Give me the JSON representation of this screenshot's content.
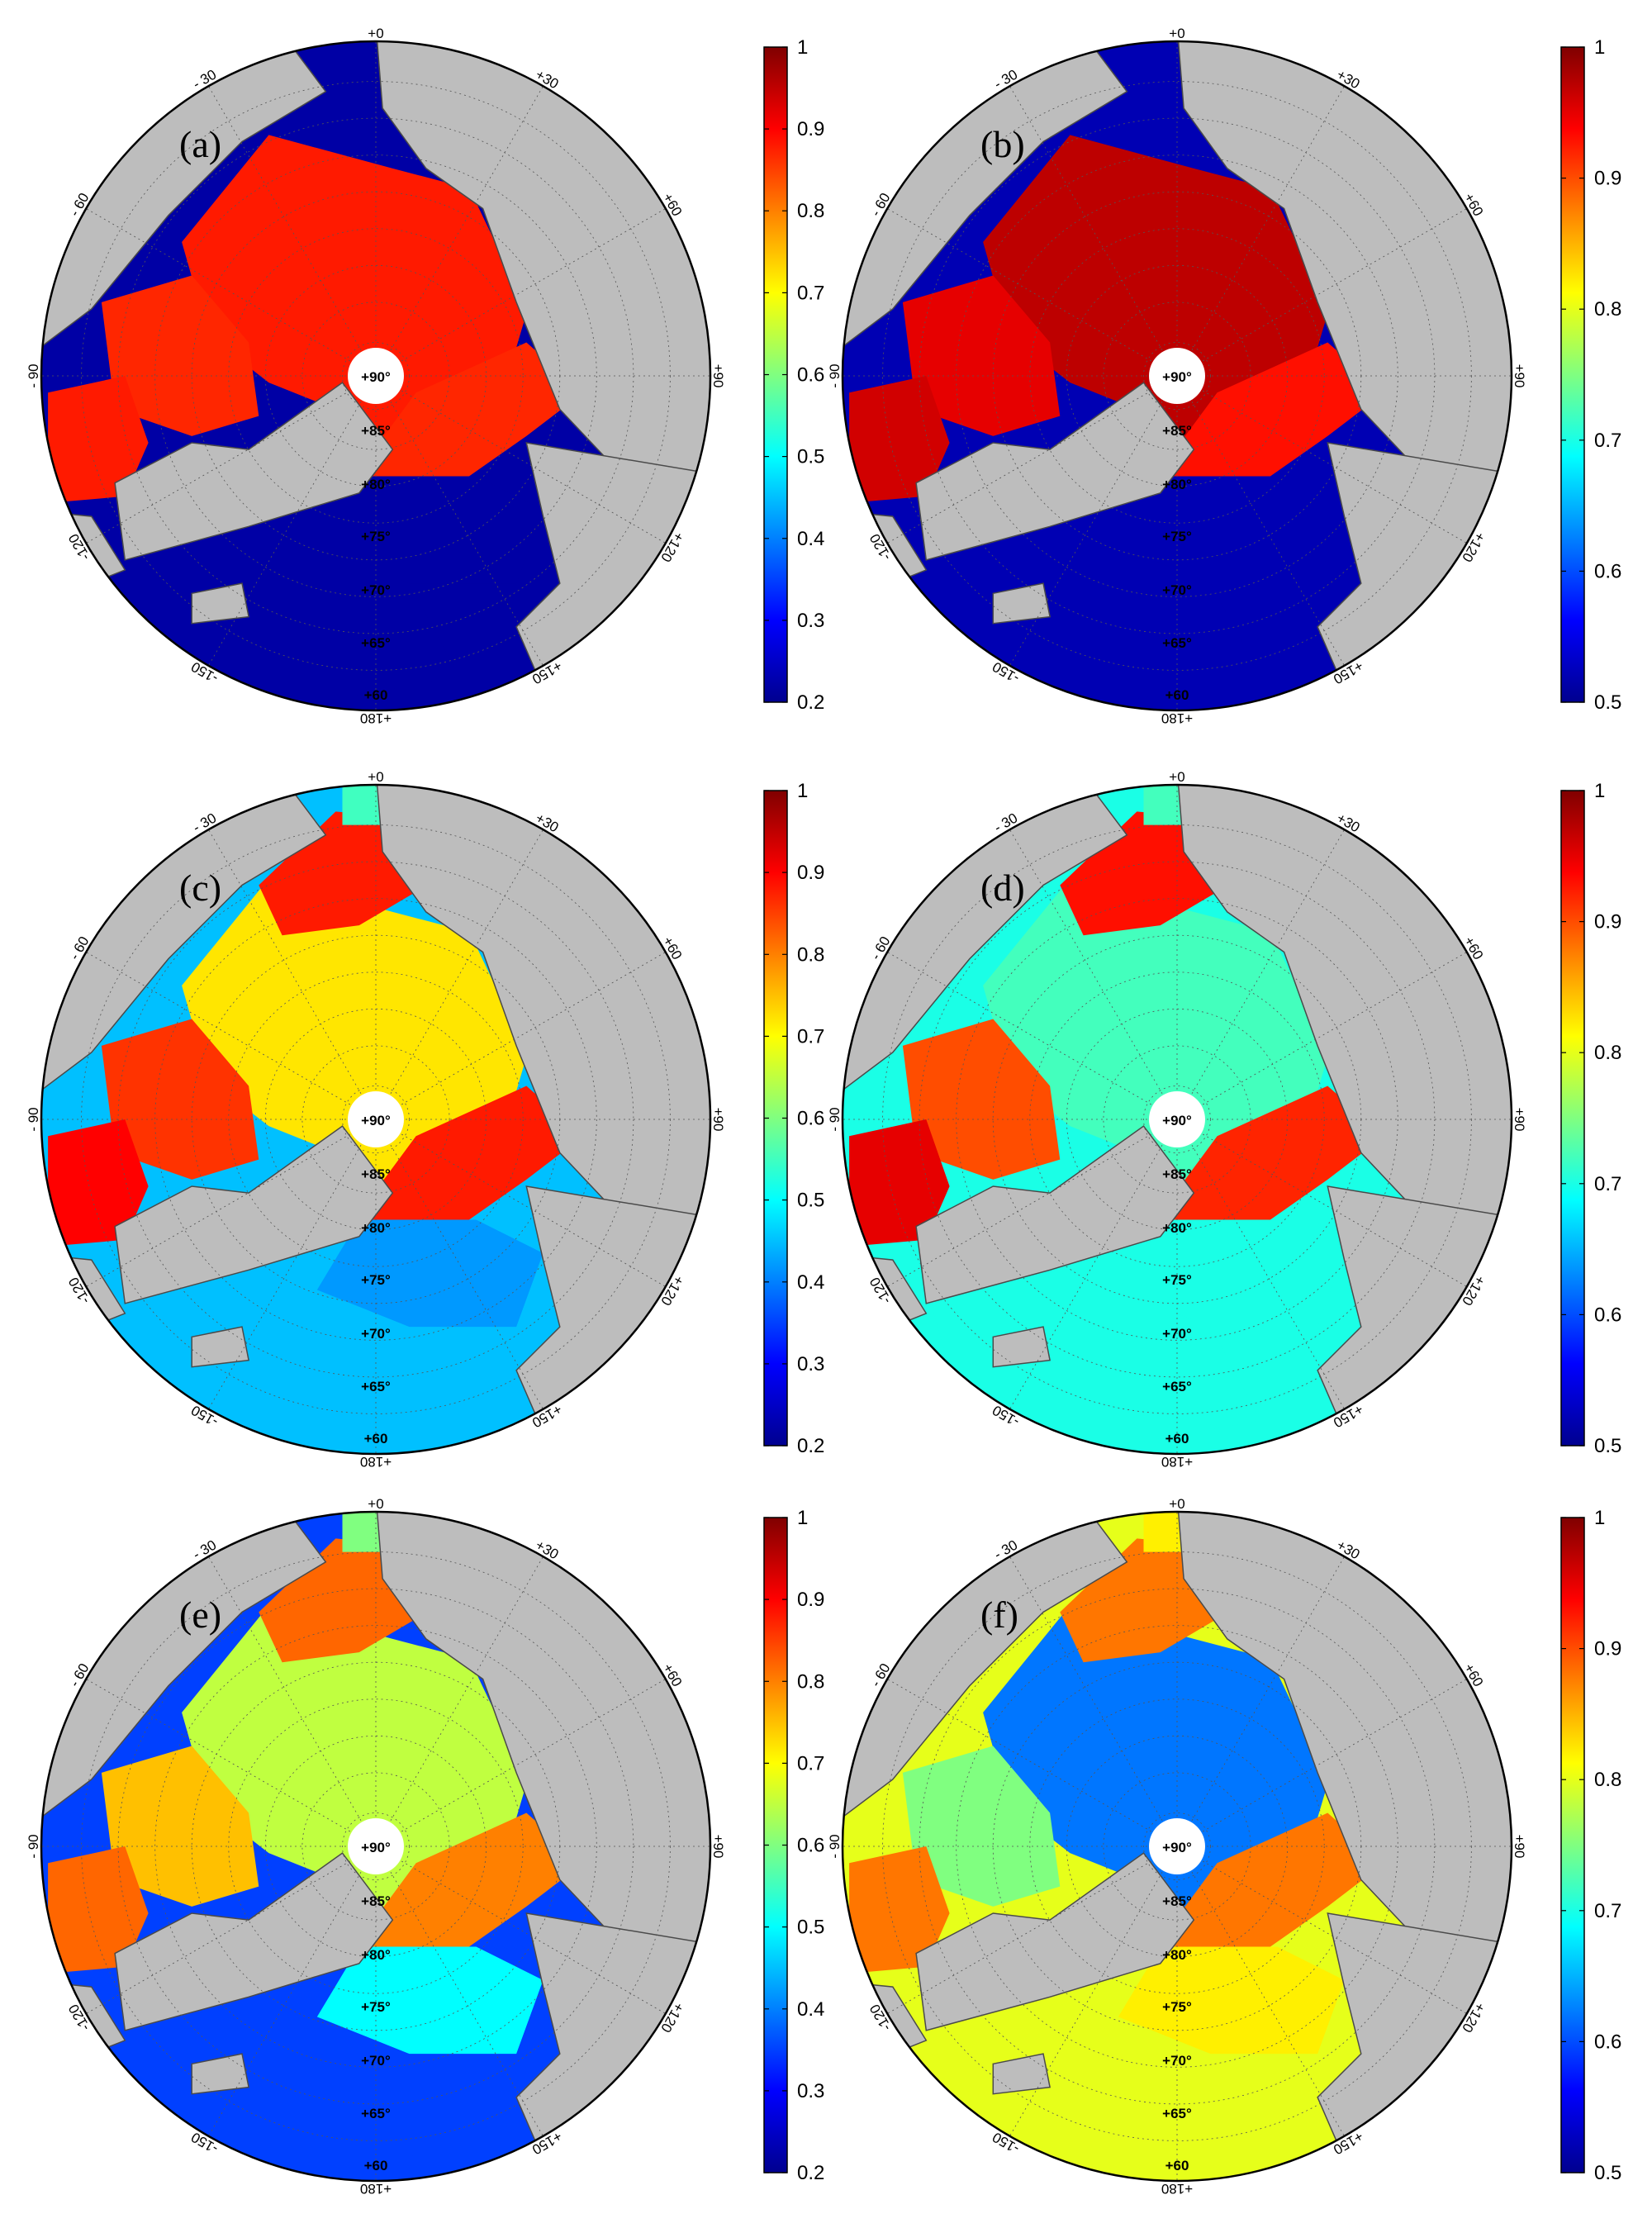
{
  "figure": {
    "panels": [
      {
        "letter": "(a)",
        "colorbar": {
          "min": 0.2,
          "max": 1,
          "ticks": [
            "1",
            "0.9",
            "0.8",
            "0.7",
            "0.6",
            "0.5",
            "0.4",
            "0.3",
            "0.2"
          ]
        }
      },
      {
        "letter": "(b)",
        "colorbar": {
          "min": 0.5,
          "max": 1,
          "ticks": [
            "1",
            "0.9",
            "0.8",
            "0.7",
            "0.6",
            "0.5"
          ]
        }
      },
      {
        "letter": "(c)",
        "colorbar": {
          "min": 0.2,
          "max": 1,
          "ticks": [
            "1",
            "0.9",
            "0.8",
            "0.7",
            "0.6",
            "0.5",
            "0.4",
            "0.3",
            "0.2"
          ]
        }
      },
      {
        "letter": "(d)",
        "colorbar": {
          "min": 0.5,
          "max": 1,
          "ticks": [
            "1",
            "0.9",
            "0.8",
            "0.7",
            "0.6",
            "0.5"
          ]
        }
      },
      {
        "letter": "(e)",
        "colorbar": {
          "min": 0.2,
          "max": 1,
          "ticks": [
            "1",
            "0.9",
            "0.8",
            "0.7",
            "0.6",
            "0.5",
            "0.4",
            "0.3",
            "0.2"
          ]
        }
      },
      {
        "letter": "(f)",
        "colorbar": {
          "min": 0.5,
          "max": 1,
          "ticks": [
            "1",
            "0.9",
            "0.8",
            "0.7",
            "0.6",
            "0.5"
          ]
        }
      }
    ],
    "longitude_labels": [
      "+180",
      "+150",
      "+120",
      "+90",
      "+60",
      "+30",
      "+0",
      "- 30",
      "- 60",
      "- 90",
      "-120",
      "-150"
    ],
    "latitude_labels": [
      "+90°",
      "+85°",
      "+80°",
      "+75°",
      "+70°",
      "+65°",
      "+60"
    ],
    "colors": {
      "land": "#bdbdbd",
      "coast": "#4a4a4a",
      "pole_hole": "#ffffff",
      "colormap": [
        "#00008f",
        "#0000ff",
        "#0080ff",
        "#00ffff",
        "#80ff80",
        "#ffff00",
        "#ff8000",
        "#ff0000",
        "#800000"
      ]
    }
  },
  "chart_data": [
    {
      "type": "heatmap",
      "panel": "(a)",
      "projection": "north polar stereographic",
      "color_range": [
        0.2,
        1
      ],
      "ticks": [
        1,
        0.9,
        0.8,
        0.7,
        0.6,
        0.5,
        0.4,
        0.3,
        0.2
      ],
      "regions": {
        "central_arctic": 0.88,
        "canadian_archipelago": 0.87,
        "hudson_bay": 0.88,
        "barents_kara": 0.87,
        "greenland_sea": 0.22,
        "north_atlantic": 0.22,
        "bering_sea": 0.22
      }
    },
    {
      "type": "heatmap",
      "panel": "(b)",
      "projection": "north polar stereographic",
      "color_range": [
        0.5,
        1
      ],
      "ticks": [
        1,
        0.9,
        0.8,
        0.7,
        0.6,
        0.5
      ],
      "regions": {
        "central_arctic": 0.97,
        "canadian_archipelago": 0.95,
        "hudson_bay": 0.96,
        "barents_kara": 0.93,
        "greenland_sea": 0.52,
        "north_atlantic": 0.52,
        "bering_sea": 0.52
      }
    },
    {
      "type": "heatmap",
      "panel": "(c)",
      "projection": "north polar stereographic",
      "color_range": [
        0.2,
        1
      ],
      "ticks": [
        1,
        0.9,
        0.8,
        0.7,
        0.6,
        0.5,
        0.4,
        0.3,
        0.2
      ],
      "regions": {
        "central_arctic": 0.72,
        "beaufort_chukchi": 0.88,
        "canadian_archipelago": 0.86,
        "hudson_bay": 0.9,
        "barents_kara": 0.88,
        "greenland_sea": 0.42,
        "north_atlantic": 0.45,
        "bering_sea": 0.55
      }
    },
    {
      "type": "heatmap",
      "panel": "(d)",
      "projection": "north polar stereographic",
      "color_range": [
        0.5,
        1
      ],
      "ticks": [
        1,
        0.9,
        0.8,
        0.7,
        0.6,
        0.5
      ],
      "regions": {
        "central_arctic": 0.72,
        "beaufort_chukchi": 0.93,
        "canadian_archipelago": 0.9,
        "hudson_bay": 0.95,
        "barents_kara": 0.92,
        "greenland_sea": 0.7,
        "north_atlantic": 0.7,
        "bering_sea": 0.72
      }
    },
    {
      "type": "heatmap",
      "panel": "(e)",
      "projection": "north polar stereographic",
      "color_range": [
        0.2,
        1
      ],
      "ticks": [
        1,
        0.9,
        0.8,
        0.7,
        0.6,
        0.5,
        0.4,
        0.3,
        0.2
      ],
      "regions": {
        "central_arctic": 0.65,
        "beaufort_chukchi": 0.82,
        "canadian_archipelago": 0.75,
        "hudson_bay": 0.82,
        "barents_kara": 0.8,
        "greenland_sea": 0.5,
        "north_atlantic": 0.35,
        "bering_sea": 0.6
      }
    },
    {
      "type": "heatmap",
      "panel": "(f)",
      "projection": "north polar stereographic",
      "color_range": [
        0.5,
        1
      ],
      "ticks": [
        1,
        0.9,
        0.8,
        0.7,
        0.6,
        0.5
      ],
      "regions": {
        "central_arctic": 0.62,
        "beaufort_chukchi": 0.88,
        "canadian_archipelago": 0.75,
        "hudson_bay": 0.88,
        "barents_kara": 0.88,
        "greenland_sea": 0.82,
        "north_atlantic": 0.8,
        "bering_sea": 0.82
      }
    }
  ]
}
